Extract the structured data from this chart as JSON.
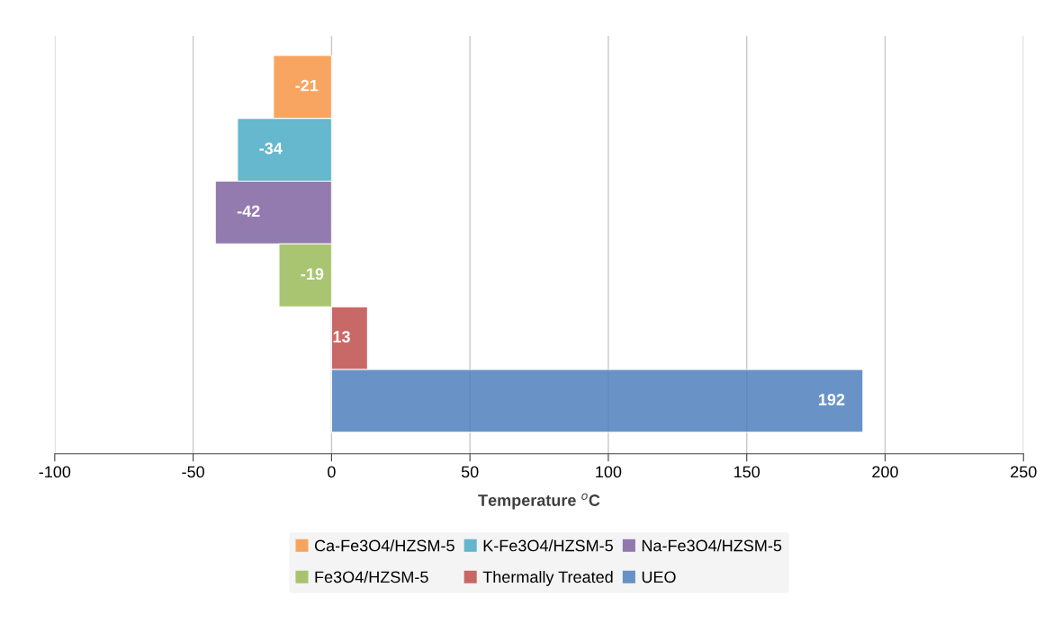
{
  "chart_data": {
    "type": "bar",
    "orientation": "horizontal",
    "categories": [
      null
    ],
    "series": [
      {
        "name": "Ca-Fe3O4/HZSM-5",
        "color": "#f79646",
        "values": [
          -21
        ]
      },
      {
        "name": "K-Fe3O4/HZSM-5",
        "color": "#4bacc6",
        "values": [
          -34
        ]
      },
      {
        "name": "Na-Fe3O4/HZSM-5",
        "color": "#8064a2",
        "values": [
          -42
        ]
      },
      {
        "name": "Fe3O4/HZSM-5",
        "color": "#9bbb59",
        "values": [
          -19
        ]
      },
      {
        "name": "Thermally Treated",
        "color": "#c0504d",
        "values": [
          13
        ]
      },
      {
        "name": "UEO",
        "color": "#4f81bd",
        "values": [
          192
        ]
      }
    ],
    "xlabel": "Temperature $^{o}$C",
    "xlim": [
      -100,
      250
    ],
    "xticks": [
      -100,
      -50,
      0,
      50,
      100,
      150,
      200,
      250
    ],
    "grid": "x",
    "legend": "bottom",
    "data_labels": true,
    "tick_labels": "x"
  }
}
